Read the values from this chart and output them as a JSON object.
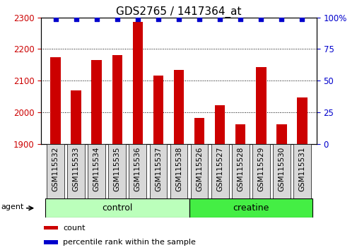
{
  "title": "GDS2765 / 1417364_at",
  "samples": [
    "GSM115532",
    "GSM115533",
    "GSM115534",
    "GSM115535",
    "GSM115536",
    "GSM115537",
    "GSM115538",
    "GSM115526",
    "GSM115527",
    "GSM115528",
    "GSM115529",
    "GSM115530",
    "GSM115531"
  ],
  "counts": [
    2175,
    2068,
    2165,
    2182,
    2285,
    2115,
    2135,
    1982,
    2022,
    1962,
    2142,
    1962,
    2047
  ],
  "percentile_ranks": [
    99,
    99,
    99,
    99,
    99,
    99,
    99,
    99,
    99,
    99,
    99,
    99,
    99
  ],
  "bar_color": "#cc0000",
  "dot_color": "#0000cc",
  "ylim_left": [
    1900,
    2300
  ],
  "ylim_right": [
    0,
    100
  ],
  "yticks_left": [
    1900,
    2000,
    2100,
    2200,
    2300
  ],
  "yticks_right": [
    0,
    25,
    50,
    75,
    100
  ],
  "groups": [
    {
      "label": "control",
      "indices": [
        0,
        1,
        2,
        3,
        4,
        5,
        6
      ],
      "color": "#bbffbb"
    },
    {
      "label": "creatine",
      "indices": [
        7,
        8,
        9,
        10,
        11,
        12
      ],
      "color": "#44ee44"
    }
  ],
  "agent_label": "agent",
  "legend_count_label": "count",
  "legend_pct_label": "percentile rank within the sample",
  "background_color": "#ffffff",
  "plot_bg_color": "#ffffff",
  "tick_label_color_left": "#cc0000",
  "tick_label_color_right": "#0000cc",
  "bar_width": 0.5,
  "title_fontsize": 11,
  "tick_fontsize": 8.5,
  "xlabel_fontsize": 7.5
}
